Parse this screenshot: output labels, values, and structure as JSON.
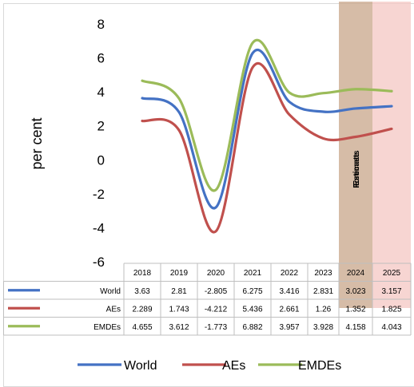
{
  "chart_data": {
    "type": "line",
    "ylabel": "per cent",
    "ylim": [
      -6,
      8
    ],
    "yticks": [
      8,
      6,
      4,
      2,
      0,
      -2,
      -4,
      -6
    ],
    "categories": [
      "2018",
      "2019",
      "2020",
      "2021",
      "2022",
      "2023",
      "2024",
      "2025"
    ],
    "series": [
      {
        "name": "World",
        "color": "#4472C4",
        "values": [
          3.63,
          2.81,
          -2.805,
          6.275,
          3.416,
          2.831,
          3.023,
          3.157
        ]
      },
      {
        "name": "AEs",
        "color": "#C0504D",
        "values": [
          2.289,
          1.743,
          -4.212,
          5.436,
          2.661,
          1.26,
          1.352,
          1.825
        ]
      },
      {
        "name": "EMDEs",
        "color": "#9BBB59",
        "values": [
          4.655,
          3.612,
          -1.773,
          6.882,
          3.957,
          3.928,
          4.158,
          4.043
        ]
      }
    ],
    "shaded_regions": [
      {
        "category": "2024",
        "label": "Estimate",
        "color": "#C8A58A"
      },
      {
        "category": "2025",
        "label": "Forecasts",
        "color": "#F4C7C3"
      }
    ],
    "table_display": {
      "World": [
        "3.63",
        "2.81",
        "-2.805",
        "6.275",
        "3.416",
        "2.831",
        "3.023",
        "3.157"
      ],
      "AEs": [
        "2.289",
        "1.743",
        "-4.212",
        "5.436",
        "2.661",
        "1.26",
        "1.352",
        "1.825"
      ],
      "EMDEs": [
        "4.655",
        "3.612",
        "-1.773",
        "6.882",
        "3.957",
        "3.928",
        "4.158",
        "4.043"
      ]
    },
    "legend_placement": "bottom"
  }
}
